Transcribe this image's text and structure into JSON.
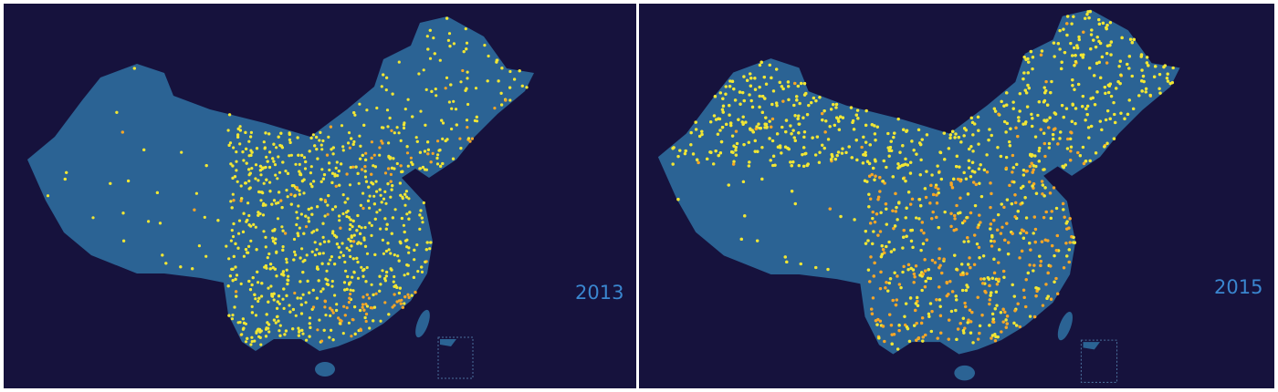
{
  "panels": [
    {
      "year_label": "2013"
    },
    {
      "year_label": "2015"
    }
  ]
}
